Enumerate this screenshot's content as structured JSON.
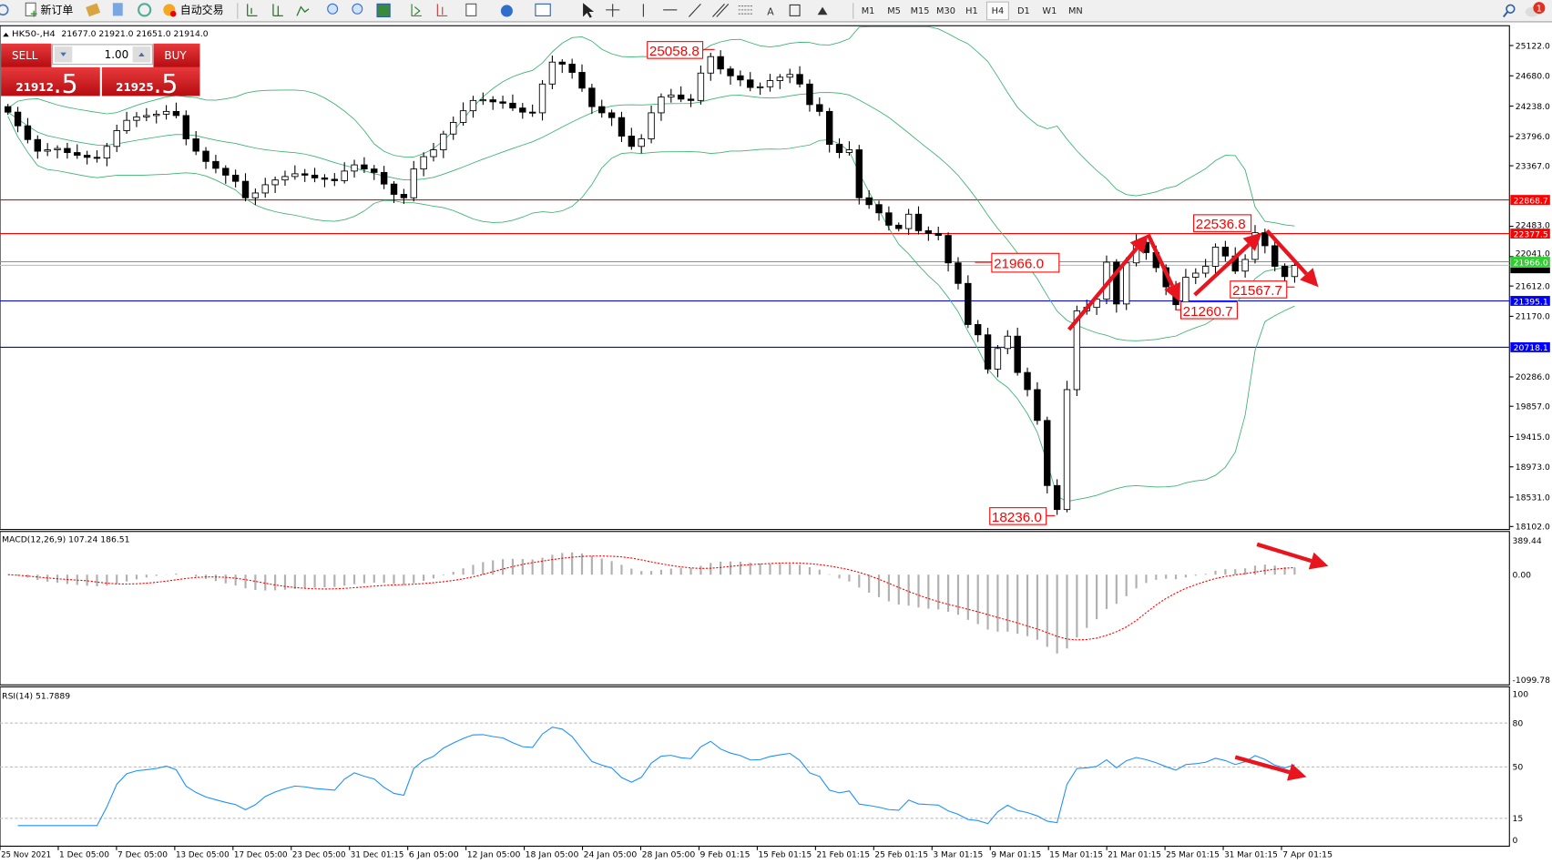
{
  "toolbar": {
    "new_order_label": "新订单",
    "auto_trading_label": "自动交易",
    "timeframes": [
      "M1",
      "M5",
      "M15",
      "M30",
      "H1",
      "H4",
      "D1",
      "W1",
      "MN"
    ],
    "active_timeframe": "H4",
    "notification_count": "1"
  },
  "chart_header": {
    "symbol": "HK50-,H4",
    "ohlc": "21677.0 21921.0 21651.0 21914.0"
  },
  "one_click": {
    "sell_label": "SELL",
    "buy_label": "BUY",
    "lot": "1.00",
    "sell_price_main": "21912",
    "sell_price_big": ".5",
    "buy_price_main": "21925",
    "buy_price_big": ".5"
  },
  "chart_data": [
    {
      "type": "candlestick",
      "title": "HK50-,H4",
      "ylim": [
        18102.0,
        25122.0
      ],
      "y_ticks": [
        "25122.0",
        "24680.0",
        "24238.0",
        "23796.0",
        "23367.0",
        "22483.0",
        "22041.0",
        "21612.0",
        "21170.0",
        "20286.0",
        "19857.0",
        "19415.0",
        "18973.0",
        "18531.0",
        "18102.0"
      ],
      "x_ticks": [
        "25 Nov 2021",
        "1 Dec 05:00",
        "7 Dec 05:00",
        "13 Dec 05:00",
        "17 Dec 05:00",
        "23 Dec 05:00",
        "31 Dec 01:15",
        "6 Jan 05:00",
        "12 Jan 05:00",
        "18 Jan 05:00",
        "24 Jan 05:00",
        "28 Jan 05:00",
        "9 Feb 01:15",
        "15 Feb 01:15",
        "21 Feb 01:15",
        "25 Feb 01:15",
        "3 Mar 01:15",
        "9 Mar 01:15",
        "15 Mar 01:15",
        "21 Mar 01:15",
        "25 Mar 01:15",
        "31 Mar 01:15",
        "7 Apr 01:15"
      ],
      "closes": [
        24150,
        23950,
        23750,
        23580,
        23600,
        23620,
        23560,
        23520,
        23490,
        23480,
        23650,
        23880,
        24030,
        24080,
        24100,
        24120,
        24160,
        24100,
        23760,
        23580,
        23430,
        23330,
        23230,
        23140,
        22900,
        22970,
        23090,
        23160,
        23210,
        23250,
        23230,
        23190,
        23170,
        23150,
        23290,
        23380,
        23320,
        23270,
        23100,
        22950,
        22900,
        23320,
        23500,
        23600,
        23830,
        24000,
        24170,
        24320,
        24330,
        24300,
        24280,
        24210,
        24150,
        24140,
        24560,
        24880,
        24850,
        24730,
        24500,
        24230,
        24140,
        24070,
        23800,
        23650,
        23760,
        24140,
        24370,
        24400,
        24340,
        24320,
        24720,
        24960,
        24780,
        24680,
        24620,
        24510,
        24520,
        24610,
        24660,
        24700,
        24560,
        24260,
        24160,
        23680,
        23560,
        23600,
        22900,
        22800,
        22680,
        22500,
        22450,
        22660,
        22420,
        22380,
        22350,
        21950,
        21650,
        21050,
        20900,
        20400,
        20700,
        20880,
        20350,
        20100,
        19650,
        18700,
        18350,
        20100,
        21250,
        21300,
        21420,
        21960,
        21350,
        21950,
        22250,
        22100,
        21880,
        21600,
        21340,
        21740,
        21800,
        21900,
        22180,
        22050,
        21830,
        22000,
        22390,
        22200,
        21900,
        21750,
        21914
      ],
      "indicator": "Bollinger Bands (20, 2)",
      "horizontal_lines": [
        {
          "value": 22868.7,
          "label": "22868.7",
          "color": "#ff0000"
        },
        {
          "value": 22377.5,
          "label": "22377.5",
          "color": "#ff0000"
        },
        {
          "value": 21966.0,
          "label": "21966.0",
          "color": "#32cd32"
        },
        {
          "value": 21395.1,
          "label": "21395.1",
          "color": "#0000ff"
        },
        {
          "value": 20718.1,
          "label": "20718.1",
          "color": "#0000ff"
        }
      ],
      "bid_line": {
        "value": 21914.0,
        "label": "21914.0"
      },
      "annotations": [
        "25058.8",
        "21966.0",
        "22536.8",
        "21260.7",
        "21567.7",
        "18236.0"
      ]
    },
    {
      "type": "macd",
      "title": "MACD(12,26,9) 107.24 186.51",
      "ylim": [
        -1099.78,
        389.44
      ],
      "y_ticks": [
        "389.44",
        "0.00",
        "-1099.78"
      ]
    },
    {
      "type": "rsi",
      "title": "RSI(14) 51.7889",
      "ylim": [
        0,
        100
      ],
      "levels": [
        80,
        50,
        15
      ],
      "y_ticks": [
        "100",
        "80",
        "50",
        "15",
        "0"
      ]
    }
  ],
  "colors": {
    "bands": "#3cb371",
    "annotation": "#ff0000",
    "arrow": "#e8141e",
    "sell_buy": "#c8141a",
    "macd_signal": "#ff0000",
    "rsi": "#1e90ff"
  }
}
